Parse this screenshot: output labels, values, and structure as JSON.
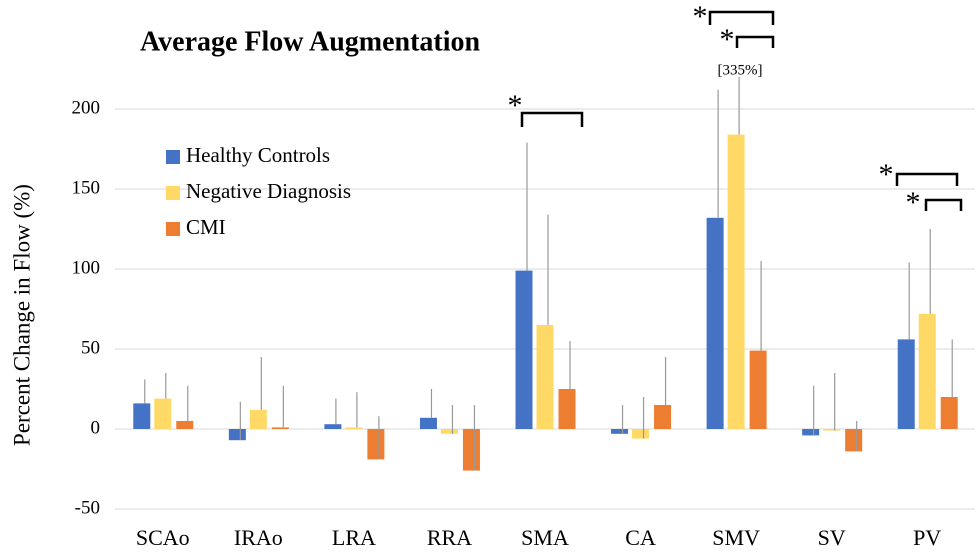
{
  "chart_data": {
    "type": "bar",
    "title": "Average Flow Augmentation",
    "y_label": "Percent Change in Flow (%)",
    "categories": [
      "SCAo",
      "IRAo",
      "LRA",
      "RRA",
      "SMA",
      "CA",
      "SMV",
      "SV",
      "PV"
    ],
    "series": [
      {
        "name": "Healthy Controls",
        "color": "#4472c4",
        "values": [
          16,
          -7,
          3,
          7,
          99,
          -3,
          132,
          -4,
          56
        ],
        "errors": [
          15,
          24,
          16,
          18,
          80,
          18,
          80,
          31,
          48
        ]
      },
      {
        "name": "Negative Diagnosis",
        "color": "#ffd966",
        "values": [
          19,
          12,
          1,
          -3,
          65,
          -6,
          184,
          -1,
          72
        ],
        "errors": [
          16,
          33,
          22,
          18,
          69,
          26,
          151,
          36,
          53
        ]
      },
      {
        "name": "CMI",
        "color": "#ed7d31",
        "values": [
          5,
          1,
          -19,
          -26,
          25,
          15,
          49,
          -14,
          20
        ],
        "errors": [
          22,
          26,
          27,
          41,
          30,
          30,
          56,
          19,
          36
        ]
      }
    ],
    "ylim": [
      -50,
      220
    ],
    "yticks": [
      -50,
      0,
      50,
      100,
      150,
      200
    ],
    "grid": true,
    "legend": "upper-left",
    "annotations": [
      "*",
      "*",
      "*",
      "[335%]",
      "*",
      "*"
    ]
  }
}
